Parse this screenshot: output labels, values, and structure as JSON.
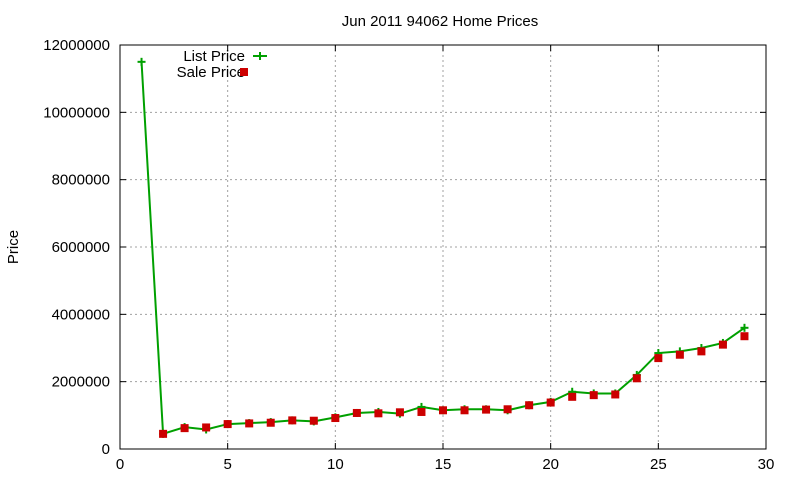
{
  "chart_data": {
    "type": "line",
    "title": "Jun 2011 94062 Home Prices",
    "xlabel": "",
    "ylabel": "Price",
    "xlim": [
      0,
      30
    ],
    "ylim": [
      0,
      12000000
    ],
    "xticks": [
      0,
      5,
      10,
      15,
      20,
      25,
      30
    ],
    "yticks": [
      0,
      2000000,
      4000000,
      6000000,
      8000000,
      10000000,
      12000000
    ],
    "grid": true,
    "legend_position": "top-left",
    "series": [
      {
        "name": "List Price",
        "style": "line-plus",
        "color": "#00a000",
        "x": [
          1,
          2,
          3,
          4,
          5,
          6,
          7,
          8,
          9,
          10,
          11,
          12,
          13,
          14,
          15,
          16,
          17,
          18,
          19,
          20,
          21,
          22,
          23,
          24,
          25,
          26,
          27,
          28,
          29
        ],
        "y": [
          11500000,
          450000,
          650000,
          580000,
          740000,
          770000,
          800000,
          850000,
          820000,
          940000,
          1070000,
          1100000,
          1050000,
          1250000,
          1150000,
          1180000,
          1180000,
          1150000,
          1300000,
          1400000,
          1700000,
          1650000,
          1650000,
          2200000,
          2850000,
          2900000,
          3000000,
          3150000,
          3600000
        ]
      },
      {
        "name": "Sale Price",
        "style": "square",
        "color": "#cc0000",
        "x": [
          2,
          3,
          4,
          5,
          6,
          7,
          8,
          9,
          10,
          11,
          12,
          13,
          14,
          15,
          16,
          17,
          18,
          19,
          20,
          21,
          22,
          23,
          24,
          25,
          26,
          27,
          28,
          29
        ],
        "y": [
          450000,
          620000,
          640000,
          740000,
          760000,
          780000,
          850000,
          840000,
          920000,
          1070000,
          1060000,
          1090000,
          1100000,
          1150000,
          1150000,
          1170000,
          1180000,
          1300000,
          1380000,
          1550000,
          1600000,
          1620000,
          2100000,
          2700000,
          2800000,
          2900000,
          3100000,
          3350000
        ]
      }
    ]
  }
}
